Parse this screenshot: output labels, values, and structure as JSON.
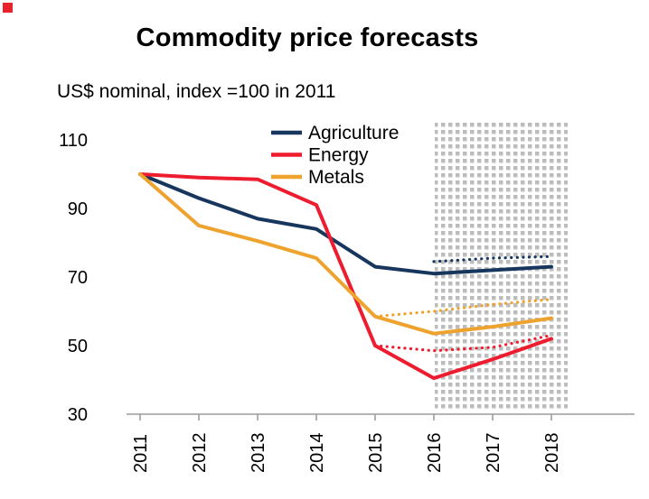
{
  "page": {
    "corner_marker_color": "#e8232e",
    "background": "#ffffff"
  },
  "chart_data": {
    "type": "line",
    "title": "Commodity price forecasts",
    "subtitle": "US$ nominal, index =100 in 2011",
    "x_categories": [
      "2011",
      "2012",
      "2013",
      "2014",
      "2015",
      "2016",
      "2017",
      "2018"
    ],
    "y_ticks": [
      110,
      90,
      70,
      50,
      30
    ],
    "ylim": [
      30,
      114
    ],
    "grid": false,
    "axis_color": "#9c9c9c",
    "tick_label_color": "#000000",
    "forecast_region": {
      "start_year": 2016,
      "end_year": 2018,
      "fill_style": "dotted-grid",
      "fill_color": "#bdbdbd"
    },
    "legend": {
      "position": "top-inside",
      "items": [
        {
          "label": "Agriculture",
          "color": "#17365d"
        },
        {
          "label": "Energy",
          "color": "#ed1c2e"
        },
        {
          "label": "Metals",
          "color": "#efa32f"
        }
      ]
    },
    "series": [
      {
        "name": "Agriculture",
        "key": "agriculture-actual",
        "color": "#17365d",
        "style": "solid",
        "x": [
          2011,
          2012,
          2013,
          2014,
          2015,
          2016,
          2017,
          2018
        ],
        "values": [
          100,
          93,
          87,
          84,
          73,
          71,
          72,
          73
        ]
      },
      {
        "name": "Agriculture forecast (dotted)",
        "key": "agriculture-forecast",
        "color": "#17365d",
        "style": "dotted",
        "x": [
          2016,
          2017,
          2018
        ],
        "values": [
          74.5,
          75.5,
          76
        ]
      },
      {
        "name": "Energy",
        "key": "energy-actual",
        "color": "#ed1c2e",
        "style": "solid",
        "x": [
          2011,
          2012,
          2013,
          2014,
          2015,
          2016,
          2017,
          2018
        ],
        "values": [
          100,
          99,
          98.5,
          91,
          50,
          40.5,
          46,
          52
        ]
      },
      {
        "name": "Energy forecast (dotted)",
        "key": "energy-forecast",
        "color": "#ed1c2e",
        "style": "dotted",
        "x": [
          2015,
          2016,
          2017,
          2018
        ],
        "values": [
          50,
          48.5,
          49.5,
          53
        ]
      },
      {
        "name": "Metals",
        "key": "metals-actual",
        "color": "#efa32f",
        "style": "solid",
        "x": [
          2011,
          2012,
          2013,
          2014,
          2015,
          2016,
          2017,
          2018
        ],
        "values": [
          100,
          85,
          80.5,
          75.5,
          58.5,
          53.5,
          55.5,
          58
        ]
      },
      {
        "name": "Metals forecast (dotted)",
        "key": "metals-forecast",
        "color": "#efa32f",
        "style": "dotted",
        "x": [
          2015,
          2016,
          2017,
          2018
        ],
        "values": [
          58.5,
          60,
          62,
          63.5
        ]
      }
    ]
  }
}
